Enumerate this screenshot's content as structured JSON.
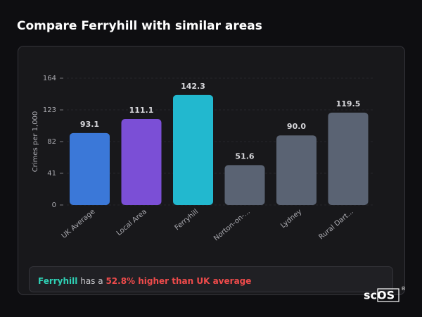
{
  "header": {
    "title": "Compare Ferryhill with similar areas"
  },
  "chart_data": {
    "type": "bar",
    "y_label": "Crimes per 1,000",
    "categories": [
      "UK Average",
      "Local Area",
      "Ferryhill",
      "Norton-on-...",
      "Lydney",
      "Rural Dart..."
    ],
    "values": [
      93.1,
      111.1,
      142.3,
      51.6,
      90.0,
      119.5
    ],
    "value_labels": [
      "93.1",
      "111.1",
      "142.3",
      "51.6",
      "90.0",
      "119.5"
    ],
    "colors": [
      "#3b78d8",
      "#7b4fd6",
      "#22b8cf",
      "#5a6373",
      "#5a6373",
      "#5a6373"
    ],
    "ylim": [
      0,
      164
    ],
    "yticks": [
      0,
      41,
      82,
      123,
      164
    ],
    "grid": true
  },
  "summary": {
    "area": "Ferryhill",
    "text": "has a",
    "highlight": "52.8% higher than UK average"
  },
  "logo": {
    "text": "scOS",
    "mark": "®"
  }
}
